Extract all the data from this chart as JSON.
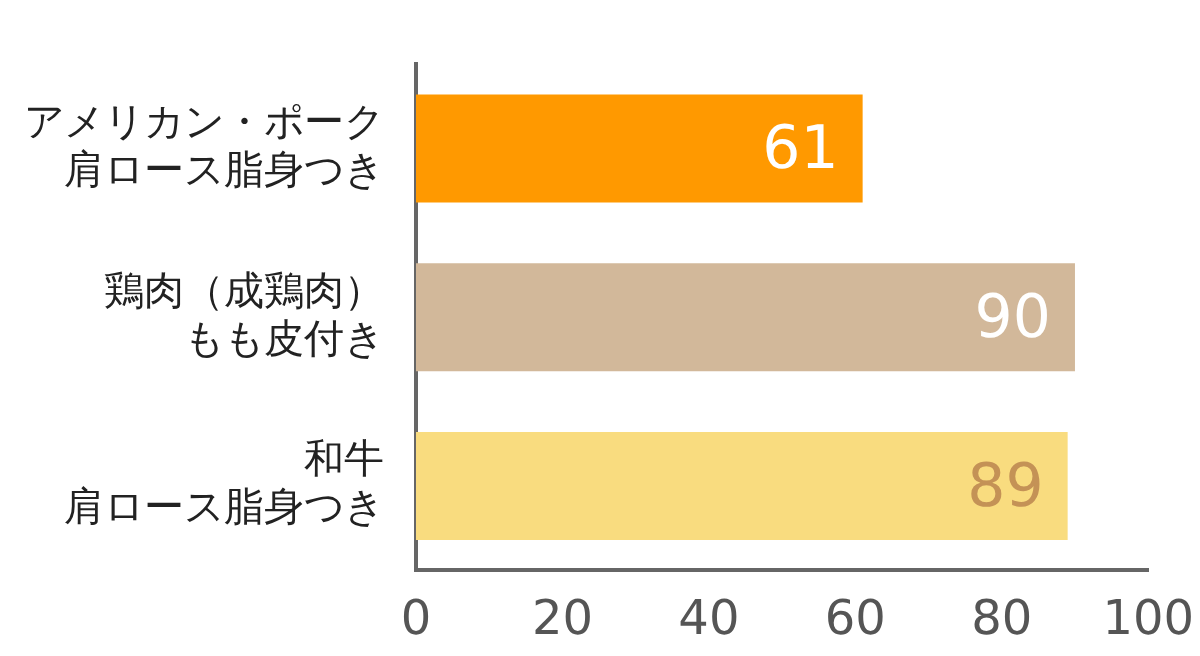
{
  "chart_data": {
    "type": "bar",
    "orientation": "horizontal",
    "categories": [
      "アメリカン・ポーク肩ロース脂身つき",
      "鶏肉（成鶏肉）もも皮付き",
      "和牛肩ロース脂身つき"
    ],
    "values": [
      61,
      90,
      89
    ],
    "colors": [
      "#ff9900",
      "#d2b89a",
      "#f9dc7f"
    ],
    "xlim": [
      0,
      100
    ],
    "xticks": [
      0,
      20,
      40,
      60,
      80,
      100
    ],
    "grid": false,
    "legend": false,
    "data_labels": true
  }
}
